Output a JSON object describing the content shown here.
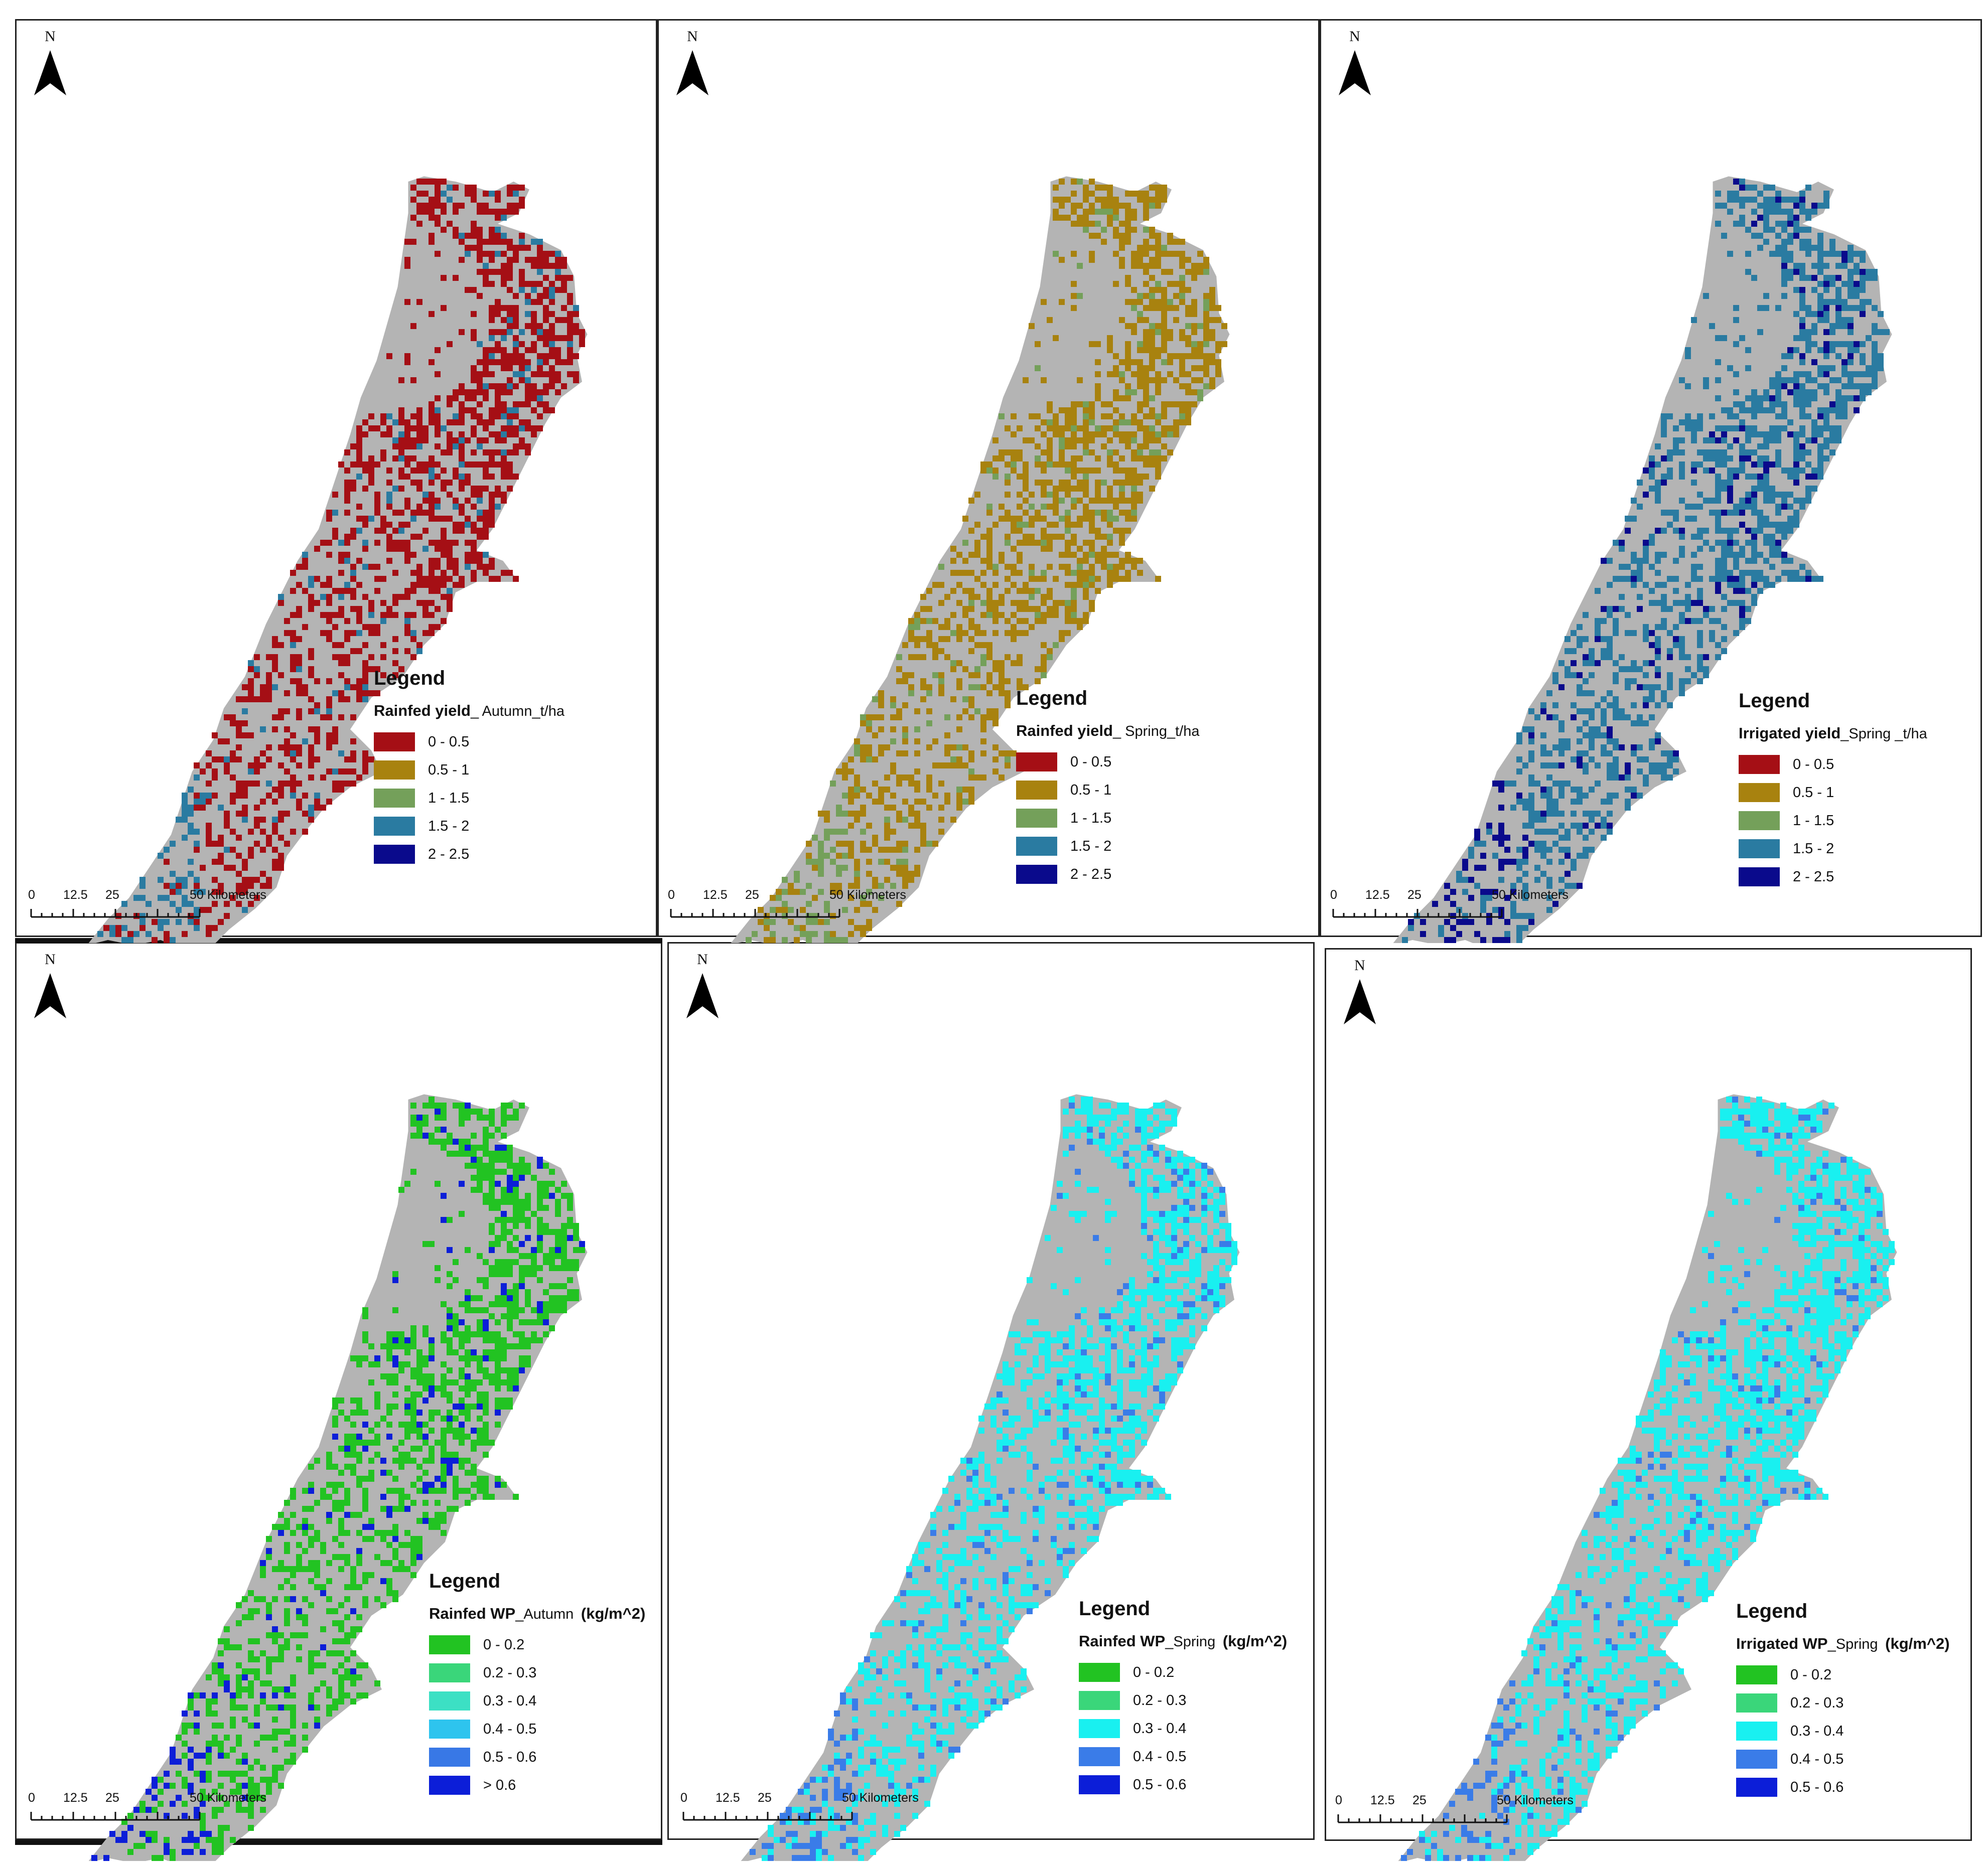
{
  "figure": {
    "north_label": "N",
    "scale_bar": {
      "ticks": [
        "0",
        "12.5",
        "25",
        "50 Kilometers"
      ]
    },
    "panels": [
      {
        "legend_title": "Legend",
        "field_name": "Rainfed yield",
        "field_suffix": "_ Autumn_t/ha",
        "classes": [
          {
            "label": "0 - 0.5",
            "color": "#a50f15"
          },
          {
            "label": "0.5 - 1",
            "color": "#a8820f"
          },
          {
            "label": "1 - 1.5",
            "color": "#74a05a"
          },
          {
            "label": "1.5 - 2",
            "color": "#2a7ba1"
          },
          {
            "label": "2 - 2.5",
            "color": "#0a0a8c"
          }
        ],
        "dominant_class": 0,
        "secondary_class": 3
      },
      {
        "legend_title": "Legend",
        "field_name": "Rainfed yield",
        "field_suffix": "_ Spring_t/ha",
        "classes": [
          {
            "label": "0 - 0.5",
            "color": "#a50f15"
          },
          {
            "label": "0.5 - 1",
            "color": "#a8820f"
          },
          {
            "label": "1 - 1.5",
            "color": "#74a05a"
          },
          {
            "label": "1.5 - 2",
            "color": "#2a7ba1"
          },
          {
            "label": "2 - 2.5",
            "color": "#0a0a8c"
          }
        ],
        "dominant_class": 1,
        "secondary_class": 2
      },
      {
        "legend_title": "Legend",
        "field_name": "Irrigated yield",
        "field_suffix": "_Spring _t/ha",
        "classes": [
          {
            "label": "0 - 0.5",
            "color": "#a50f15"
          },
          {
            "label": "0.5 - 1",
            "color": "#a8820f"
          },
          {
            "label": "1 - 1.5",
            "color": "#74a05a"
          },
          {
            "label": "1.5 - 2",
            "color": "#2a7ba1"
          },
          {
            "label": "2 - 2.5",
            "color": "#0a0a8c"
          }
        ],
        "dominant_class": 3,
        "secondary_class": 4
      },
      {
        "legend_title": "Legend",
        "field_name": "Rainfed WP",
        "field_suffix": "_Autumn",
        "field_unit": "(kg/m^2)",
        "classes": [
          {
            "label": "0 - 0.2",
            "color": "#22c322"
          },
          {
            "label": "0.2 - 0.3",
            "color": "#3ad67a"
          },
          {
            "label": "0.3 - 0.4",
            "color": "#3ce0c4"
          },
          {
            "label": "0.4 - 0.5",
            "color": "#2ec4ee"
          },
          {
            "label": "0.5 - 0.6",
            "color": "#3878e6"
          },
          {
            "label": "> 0.6",
            "color": "#0c1ed8"
          }
        ],
        "dominant_class": 0,
        "secondary_class": 5
      },
      {
        "legend_title": "Legend",
        "field_name": "Rainfed WP",
        "field_suffix": "_Spring",
        "field_unit": "(kg/m^2)",
        "classes": [
          {
            "label": "0 - 0.2",
            "color": "#22c322"
          },
          {
            "label": "0.2 - 0.3",
            "color": "#3ad67a"
          },
          {
            "label": "0.3 - 0.4",
            "color": "#19f0f0"
          },
          {
            "label": "0.4 - 0.5",
            "color": "#3a7ce8"
          },
          {
            "label": "0.5 - 0.6",
            "color": "#0c1ed8"
          }
        ],
        "dominant_class": 2,
        "secondary_class": 3
      },
      {
        "legend_title": "Legend",
        "field_name": "Irrigated WP",
        "field_suffix": "_Spring",
        "field_unit": "(kg/m^2)",
        "classes": [
          {
            "label": "0 - 0.2",
            "color": "#22c322"
          },
          {
            "label": "0.2 - 0.3",
            "color": "#3ad67a"
          },
          {
            "label": "0.3 - 0.4",
            "color": "#19f0f0"
          },
          {
            "label": "0.4 - 0.5",
            "color": "#3a7ce8"
          },
          {
            "label": "0.5 - 0.6",
            "color": "#0c1ed8"
          }
        ],
        "dominant_class": 2,
        "secondary_class": 3
      }
    ]
  }
}
